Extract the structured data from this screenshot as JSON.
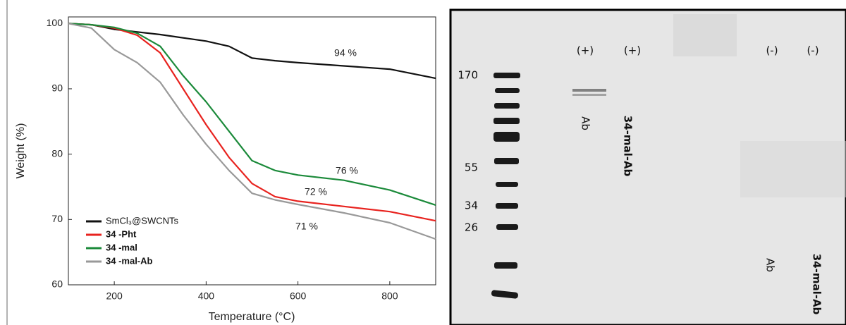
{
  "chart_data": {
    "type": "line",
    "x_label": "Temperature (°C)",
    "y_label": "Weight (%)",
    "xlim": [
      100,
      900
    ],
    "xticks": [
      200,
      400,
      600,
      800
    ],
    "ylim": [
      60,
      101
    ],
    "yticks": [
      60,
      70,
      80,
      90,
      100
    ],
    "legend": "lower left",
    "x": [
      100,
      150,
      200,
      250,
      300,
      350,
      400,
      450,
      500,
      550,
      600,
      700,
      800,
      900
    ],
    "series": [
      {
        "name": "SmCl₃@SWCNTs",
        "color": "#111111",
        "values": [
          100,
          99.8,
          99.1,
          98.7,
          98.3,
          97.8,
          97.3,
          96.5,
          94.7,
          94.3,
          94,
          93.5,
          93,
          91.6
        ]
      },
      {
        "name": "34 -Pht",
        "color": "#e8231f",
        "values": [
          100,
          99.8,
          99.3,
          98.2,
          95.5,
          90,
          84.5,
          79.5,
          75.5,
          73.5,
          72.8,
          72,
          71.2,
          69.8
        ]
      },
      {
        "name": "34 -mal",
        "color": "#1b8a3a",
        "values": [
          100,
          99.8,
          99.4,
          98.5,
          96.5,
          92,
          88,
          83.5,
          79,
          77.5,
          76.8,
          76,
          74.5,
          72.2
        ]
      },
      {
        "name": "34 -mal-Ab",
        "color": "#999999",
        "values": [
          100,
          99.3,
          96,
          94,
          91,
          86,
          81.5,
          77.5,
          74,
          73,
          72.3,
          71,
          69.5,
          67
        ]
      }
    ],
    "annotations": [
      "94 %",
      "76 %",
      "72 %",
      "71 %"
    ]
  },
  "gel": {
    "marker_labels": [
      "170",
      "55",
      "34",
      "26"
    ],
    "lane_signs": [
      "(+)",
      "(+)",
      "(-)",
      "(-)"
    ],
    "lane_names": [
      "Ab",
      "34-mal-Ab",
      "Ab",
      "34-mal-Ab"
    ]
  }
}
